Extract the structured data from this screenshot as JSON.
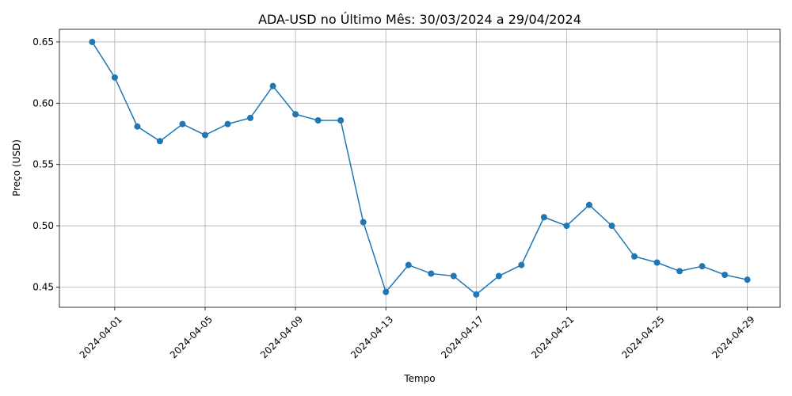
{
  "chart_data": {
    "type": "line",
    "title": "ADA-USD no Último Mês: 30/03/2024 a 29/04/2024",
    "xlabel": "Tempo",
    "ylabel": "Preço (USD)",
    "grid": true,
    "legend": null,
    "color": "#1f77b4",
    "x": [
      "2024-03-31",
      "2024-04-01",
      "2024-04-02",
      "2024-04-03",
      "2024-04-04",
      "2024-04-05",
      "2024-04-06",
      "2024-04-07",
      "2024-04-08",
      "2024-04-09",
      "2024-04-10",
      "2024-04-11",
      "2024-04-12",
      "2024-04-13",
      "2024-04-14",
      "2024-04-15",
      "2024-04-16",
      "2024-04-17",
      "2024-04-18",
      "2024-04-19",
      "2024-04-20",
      "2024-04-21",
      "2024-04-22",
      "2024-04-23",
      "2024-04-24",
      "2024-04-25",
      "2024-04-26",
      "2024-04-27",
      "2024-04-28",
      "2024-04-29"
    ],
    "values": [
      0.65,
      0.621,
      0.581,
      0.569,
      0.583,
      0.574,
      0.583,
      0.588,
      0.614,
      0.591,
      0.586,
      0.586,
      0.503,
      0.446,
      0.468,
      0.461,
      0.459,
      0.444,
      0.459,
      0.468,
      0.507,
      0.5,
      0.517,
      0.5,
      0.475,
      0.47,
      0.463,
      0.467,
      0.46,
      0.456
    ],
    "xticks": [
      "2024-04-01",
      "2024-04-05",
      "2024-04-09",
      "2024-04-13",
      "2024-04-17",
      "2024-04-21",
      "2024-04-25",
      "2024-04-29"
    ],
    "yticks": [
      0.45,
      0.5,
      0.55,
      0.6,
      0.65
    ],
    "ytick_labels": [
      "0.45",
      "0.50",
      "0.55",
      "0.60",
      "0.65"
    ],
    "ylim": [
      0.4335,
      0.6603
    ]
  }
}
